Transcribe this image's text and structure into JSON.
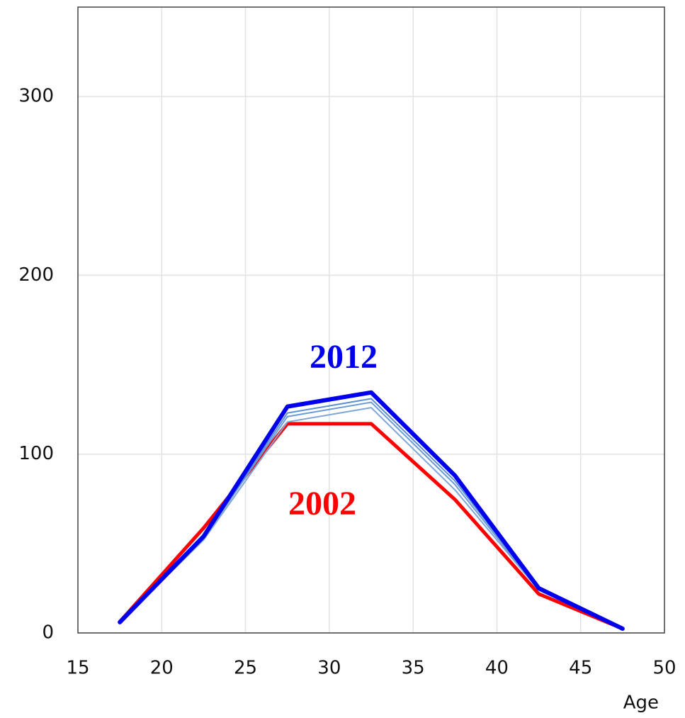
{
  "chart_data": {
    "type": "line",
    "x_label": "Age",
    "x": [
      17.5,
      22.5,
      27.5,
      32.5,
      37.5,
      42.5,
      47.5
    ],
    "series": [
      {
        "name": "2002",
        "color": "#ff0000",
        "values": [
          6.3,
          58.7,
          117,
          117,
          74.6,
          21.8,
          2.4
        ]
      },
      {
        "color": "#7fa6d8",
        "values": [
          6,
          52,
          118,
          126,
          80,
          24,
          2.4
        ]
      },
      {
        "color": "#6b9bd6",
        "values": [
          6,
          53,
          121,
          129,
          83,
          24,
          2.4
        ]
      },
      {
        "color": "#5a8fd4",
        "values": [
          6,
          53,
          123,
          131,
          85,
          24.5,
          2.4
        ]
      },
      {
        "name": "2012",
        "color": "#0000ee",
        "values": [
          6,
          54,
          126.6,
          134.5,
          88,
          25,
          2.4
        ]
      }
    ],
    "xlim": [
      15,
      50
    ],
    "xticks": [
      15,
      20,
      25,
      30,
      35,
      40,
      45,
      50
    ],
    "ylim": [
      0,
      350
    ],
    "yticks": [
      0,
      100,
      200,
      300
    ],
    "grid": true
  }
}
